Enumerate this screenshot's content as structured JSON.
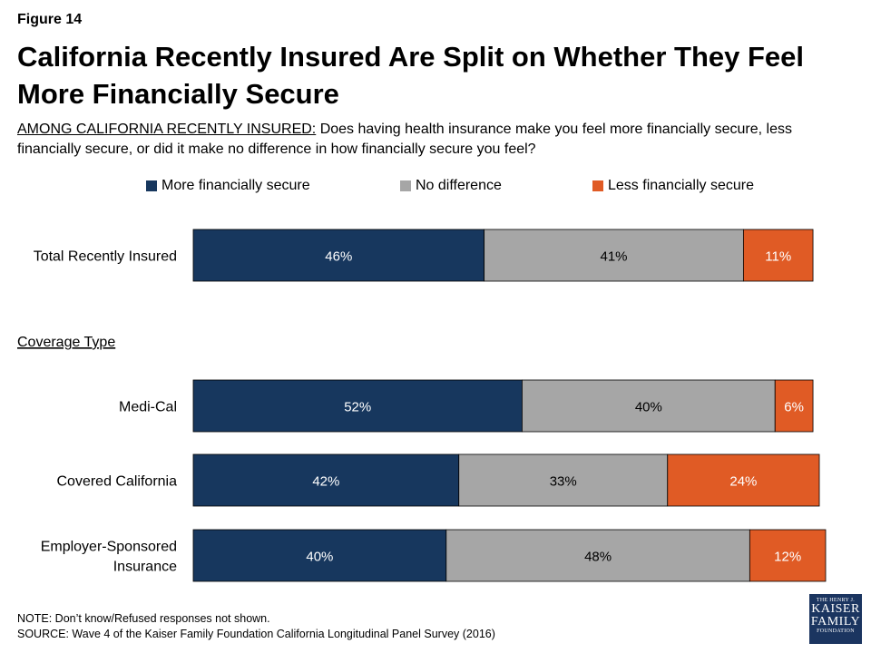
{
  "figure_label": "Figure 14",
  "title": "California Recently Insured Are Split on Whether They Feel More Financially Secure",
  "subtitle_prefix": "AMONG CALIFORNIA RECENTLY INSURED:",
  "subtitle_text": " Does having health insurance make you feel more financially secure, less financially secure, or did it make no difference in how financially secure you feel?",
  "note": "NOTE: Don’t know/Refused responses not shown.",
  "source": "SOURCE: Wave 4 of the Kaiser Family Foundation California Longitudinal Panel Survey (2016)",
  "logo": {
    "line1": "THE HENRY J.",
    "line2": "KAISER",
    "line3": "FAMILY",
    "line4": "FOUNDATION"
  },
  "colors": {
    "more": "#17375e",
    "none": "#a6a6a6",
    "less": "#e05b25"
  },
  "chart_data": {
    "type": "bar",
    "orientation": "horizontal",
    "stacked": true,
    "xlim": [
      0,
      100
    ],
    "section_label": "Coverage Type",
    "categories": [
      "Total Recently Insured",
      "Medi-Cal",
      "Covered California",
      "Employer-Sponsored Insurance"
    ],
    "series": [
      {
        "name": "More financially secure",
        "values": [
          46,
          52,
          42,
          40
        ],
        "color": "#17375e"
      },
      {
        "name": "No difference",
        "values": [
          41,
          40,
          33,
          48
        ],
        "color": "#a6a6a6"
      },
      {
        "name": "Less financially secure",
        "values": [
          11,
          6,
          24,
          12
        ],
        "color": "#e05b25"
      }
    ],
    "value_suffix": "%",
    "legend_position": "top"
  }
}
